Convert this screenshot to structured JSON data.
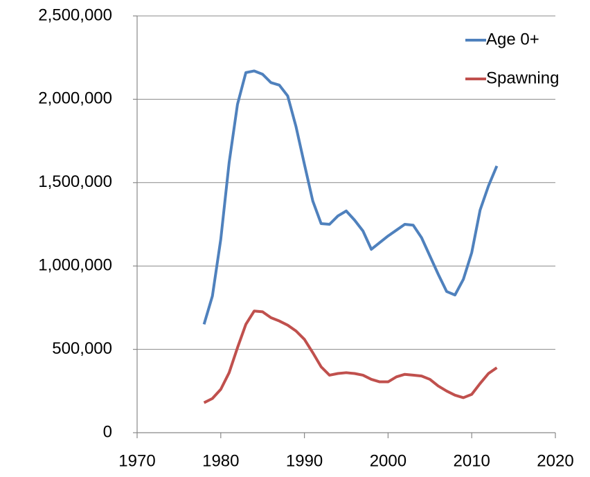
{
  "chart_data": {
    "type": "line",
    "x": [
      1978,
      1979,
      1980,
      1981,
      1982,
      1983,
      1984,
      1985,
      1986,
      1987,
      1988,
      1989,
      1990,
      1991,
      1992,
      1993,
      1994,
      1995,
      1996,
      1997,
      1998,
      1999,
      2000,
      2001,
      2002,
      2003,
      2004,
      2005,
      2006,
      2007,
      2008,
      2009,
      2010,
      2011,
      2012,
      2013
    ],
    "series": [
      {
        "name": "Age 0+",
        "color": "#4f81bd",
        "values": [
          650000,
          820000,
          1160000,
          1620000,
          1970000,
          2160000,
          2170000,
          2150000,
          2100000,
          2085000,
          2020000,
          1835000,
          1610000,
          1390000,
          1254000,
          1250000,
          1300000,
          1330000,
          1275000,
          1210000,
          1100000,
          1140000,
          1180000,
          1215000,
          1250000,
          1245000,
          1170000,
          1060000,
          950000,
          847000,
          826000,
          920000,
          1080000,
          1335000,
          1480000,
          1600000
        ]
      },
      {
        "name": "Spawning",
        "color": "#c0504d",
        "values": [
          180000,
          205000,
          260000,
          360000,
          510000,
          650000,
          730000,
          725000,
          690000,
          670000,
          645000,
          610000,
          560000,
          480000,
          395000,
          345000,
          355000,
          360000,
          355000,
          345000,
          320000,
          305000,
          305000,
          335000,
          350000,
          345000,
          340000,
          320000,
          280000,
          250000,
          225000,
          210000,
          230000,
          295000,
          355000,
          390000
        ]
      }
    ],
    "xlim": [
      1970,
      2020
    ],
    "xticks": [
      1970,
      1980,
      1990,
      2000,
      2010,
      2020
    ],
    "ylim": [
      0,
      2500000
    ],
    "yticks": [
      0,
      {
        "value": 500000,
        "label": "500,000"
      },
      {
        "value": 1000000,
        "label": "1,000,000"
      },
      {
        "value": 1500000,
        "label": "1,500,000"
      },
      {
        "value": 2000000,
        "label": "2,000,000"
      },
      {
        "value": 2500000,
        "label": "2,500,000"
      }
    ],
    "grid": true,
    "legend": "upper right"
  }
}
